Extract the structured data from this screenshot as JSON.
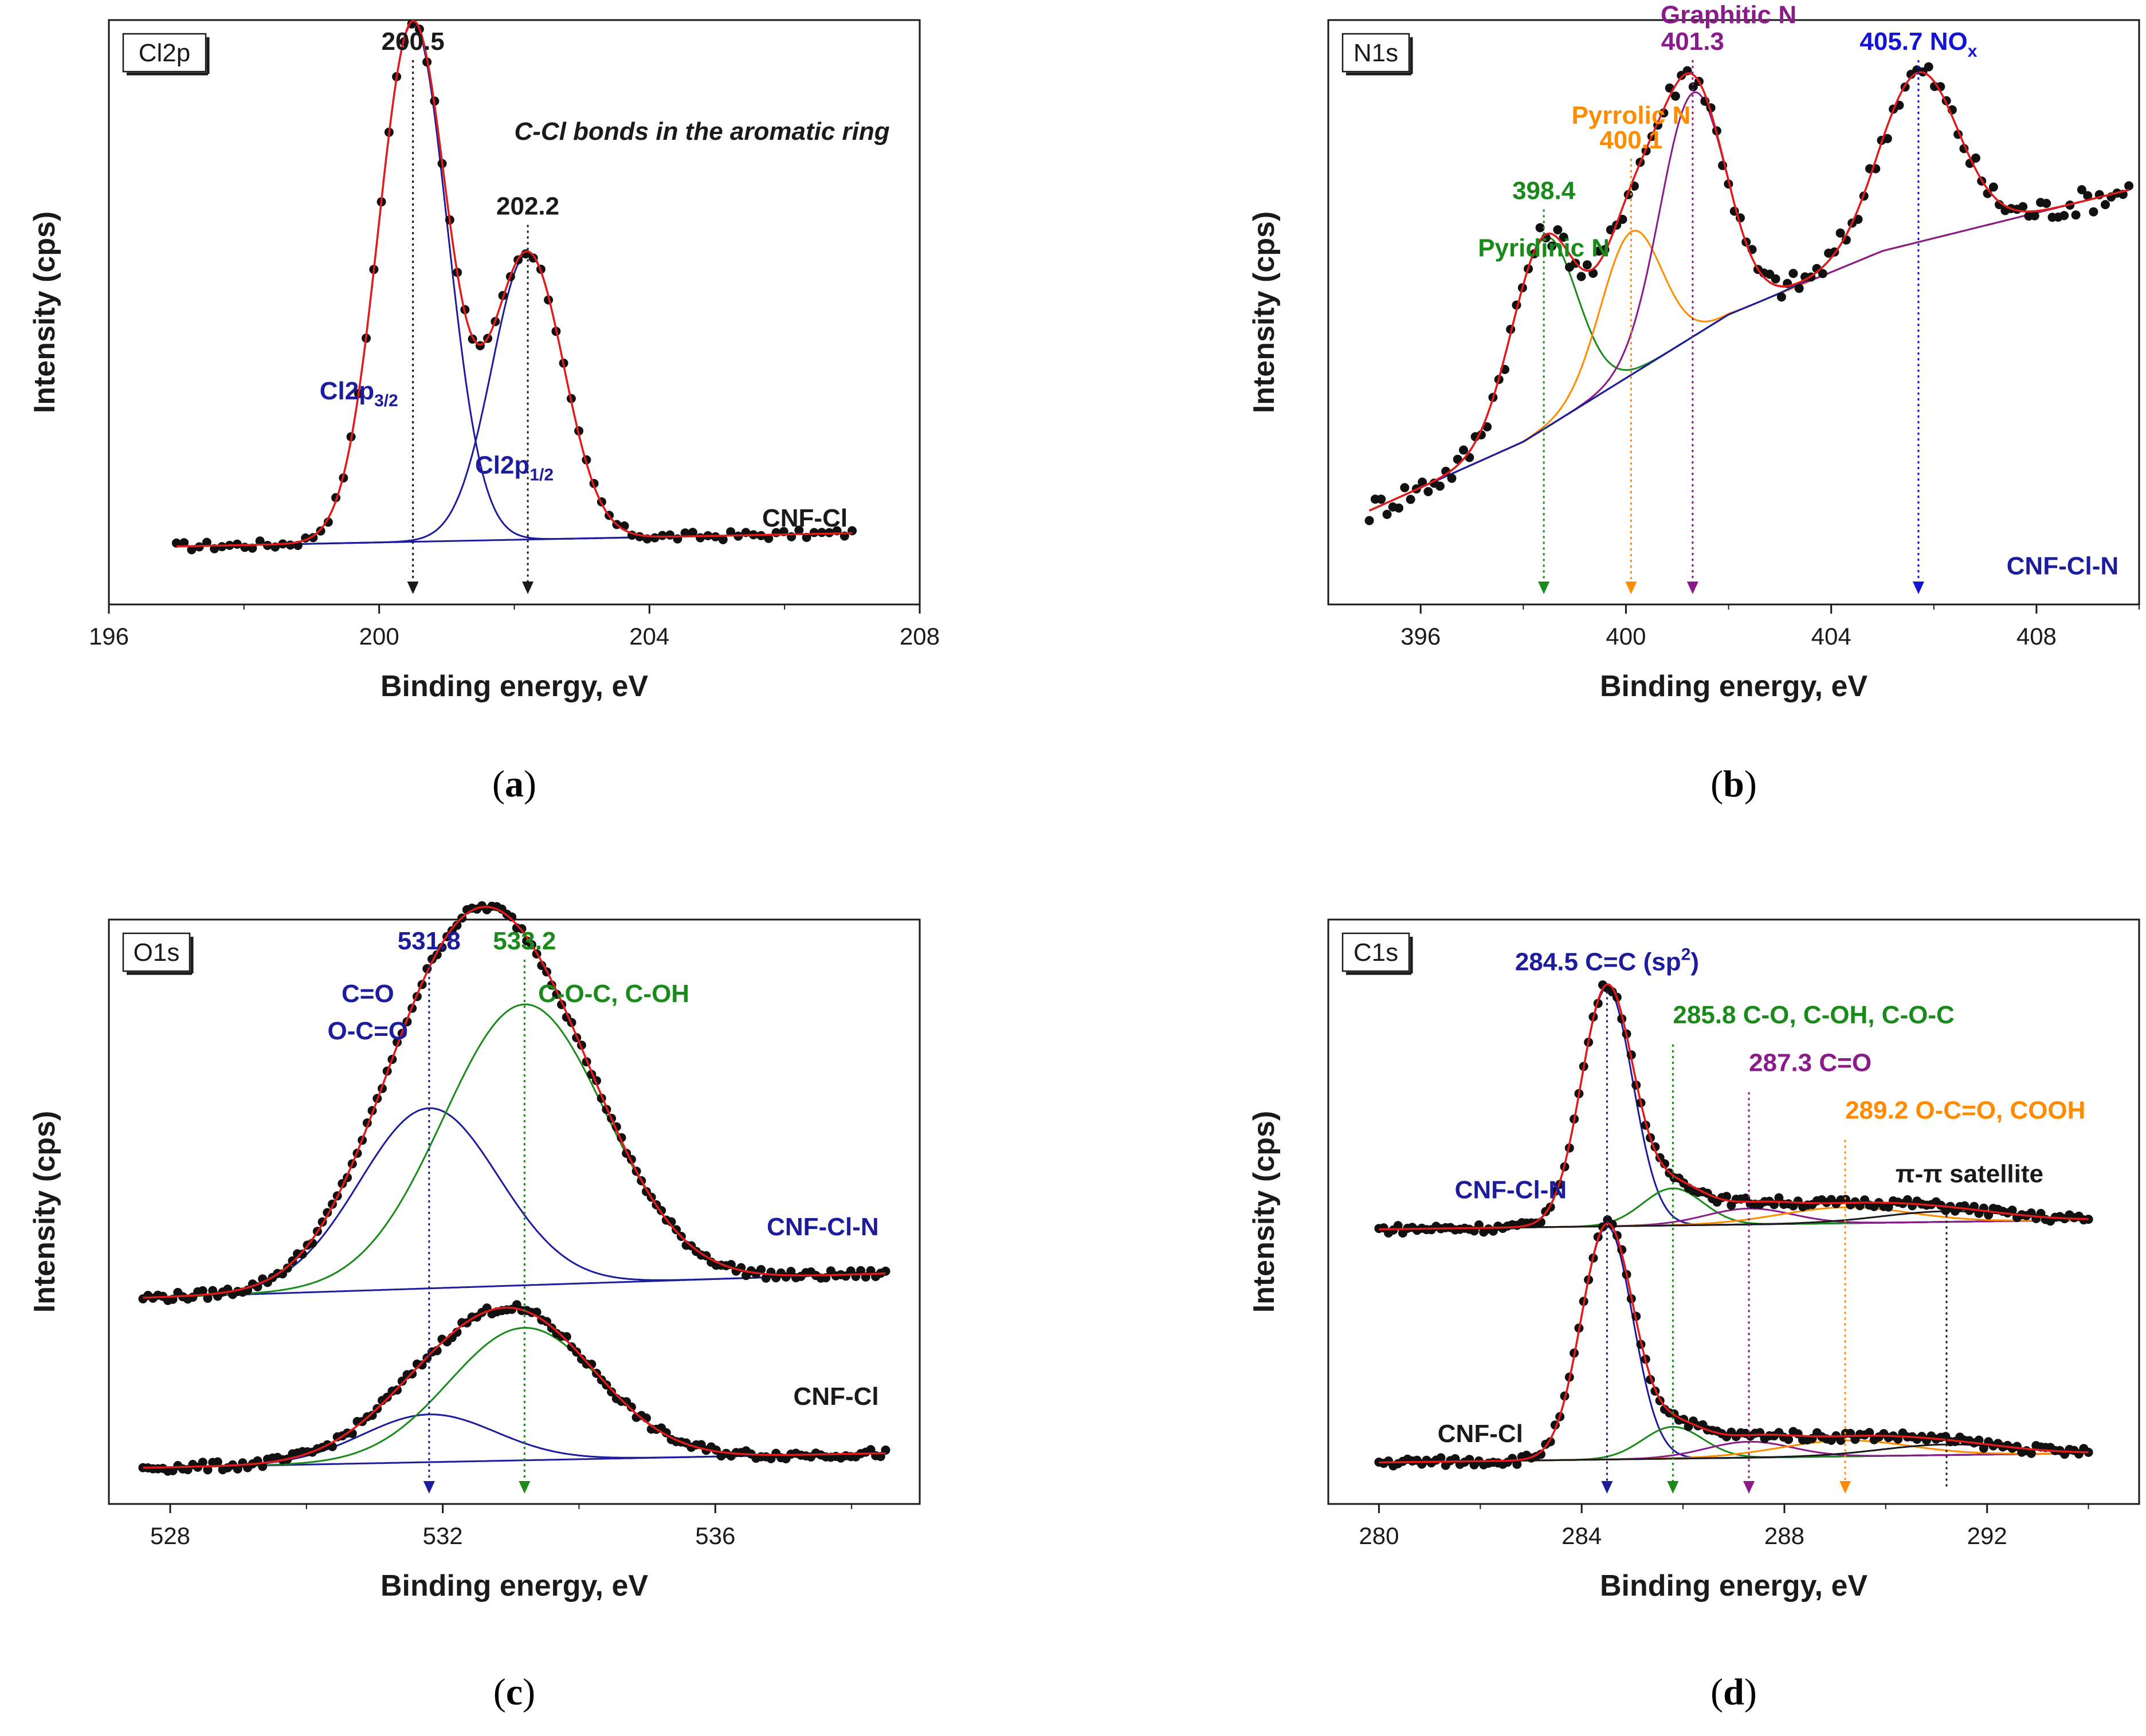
{
  "chart_data": [
    {
      "id": "a",
      "type": "scatter",
      "caption": "a",
      "tag": "Cl2p",
      "xlabel": "Binding energy, eV",
      "ylabel": "Intensity (cps)",
      "xlim": [
        196,
        208
      ],
      "xticks": [
        196,
        200,
        204,
        208
      ],
      "ylim": [
        0,
        1
      ],
      "sample_labels": [
        {
          "text": "CNF-Cl",
          "color": "#1a1a1a",
          "x": 206.3,
          "y": 0.12
        }
      ],
      "background": {
        "from": 0.0,
        "to": 0.03
      },
      "peaks": [
        {
          "center": 200.5,
          "fwhm": 1.2,
          "amp": 0.98,
          "color": "#1c1c9c",
          "marker": {
            "text": "200.5",
            "color": "#1a1a1a"
          }
        },
        {
          "center": 202.2,
          "fwhm": 1.25,
          "amp": 0.54,
          "color": "#1c1c9c",
          "marker": {
            "text": "202.2",
            "color": "#1a1a1a"
          }
        }
      ],
      "annotations": [
        {
          "text": "C-Cl bonds in the aromatic ring",
          "color": "#1a1a1a",
          "x": 202.0,
          "y": 0.85,
          "anchor": "start",
          "italic": true
        },
        {
          "text": "Cl2p",
          "sub": "3/2",
          "color": "#1c1c9c",
          "x": 199.7,
          "y": 0.36,
          "anchor": "middle"
        },
        {
          "text": "Cl2p",
          "sub": "1/2",
          "color": "#1c1c9c",
          "x": 202.0,
          "y": 0.22,
          "anchor": "middle"
        }
      ]
    },
    {
      "id": "b",
      "type": "scatter",
      "caption": "b",
      "tag": "N1s",
      "xlabel": "Binding energy, eV",
      "ylabel": "Intensity (cps)",
      "xlim": [
        394.2,
        410
      ],
      "xticks": [
        396,
        400,
        404,
        408
      ],
      "ylim": [
        0,
        1
      ],
      "sample_labels": [
        {
          "text": "CNF-Cl-N",
          "color": "#1c1c9c",
          "x": 409.6,
          "y": 0.03,
          "anchor": "end"
        }
      ],
      "background": {
        "points": [
          [
            395,
            0.07
          ],
          [
            398,
            0.2
          ],
          [
            402,
            0.44
          ],
          [
            405,
            0.56
          ],
          [
            410,
            0.68
          ]
        ]
      },
      "peaks": [
        {
          "center": 398.4,
          "fwhm": 1.5,
          "amp": 0.36,
          "color": "#1a8a1a",
          "marker": {
            "text": "398.4",
            "color": "#1a8a1a"
          }
        },
        {
          "center": 400.1,
          "fwhm": 1.4,
          "amp": 0.27,
          "color": "#ff8c00",
          "marker": {
            "text": "400.1",
            "color": "#ff8c00"
          }
        },
        {
          "center": 401.3,
          "fwhm": 1.5,
          "amp": 0.46,
          "color": "#8b1a8b",
          "marker": {
            "text": "401.3",
            "color": "#8b1a8b"
          }
        },
        {
          "center": 405.7,
          "fwhm": 1.8,
          "amp": 0.32,
          "color": "#1c1c9c",
          "marker": {
            "text": "405.7 NO",
            "sub": "x",
            "color": "#1414d4"
          }
        }
      ],
      "annotations": [
        {
          "text": "Pyridinic N",
          "color": "#1a8a1a",
          "x": 398.4,
          "y": 0.63,
          "anchor": "middle"
        },
        {
          "text": "Pyrrolic N",
          "color": "#ff8c00",
          "x": 400.1,
          "y": 0.88,
          "anchor": "middle"
        },
        {
          "text": "Graphitic N",
          "color": "#8b1a8b",
          "x": 402.0,
          "y": 1.07,
          "anchor": "middle"
        }
      ]
    },
    {
      "id": "c",
      "type": "scatter",
      "caption": "c",
      "tag": "O1s",
      "xlabel": "Binding energy, eV",
      "ylabel": "Intensity (cps)",
      "xlim": [
        527.1,
        539
      ],
      "xticks": [
        528,
        532,
        536
      ],
      "ylim": [
        0,
        1
      ],
      "sample_labels": [
        {
          "text": "CNF-Cl-N",
          "color": "#1c1c9c",
          "x": 538.4,
          "y": 0.48,
          "anchor": "end"
        },
        {
          "text": "CNF-Cl",
          "color": "#1a1a1a",
          "x": 538.4,
          "y": 0.16,
          "anchor": "end"
        }
      ],
      "spectra": [
        {
          "name": "CNF-Cl-N",
          "offset": 0.36,
          "background": [
            0.0,
            0.05
          ],
          "peaks": [
            {
              "center": 531.8,
              "fwhm": 2.4,
              "amp": 0.34,
              "color": "#1c1c9c"
            },
            {
              "center": 533.2,
              "fwhm": 2.8,
              "amp": 0.53,
              "color": "#1a8a1a"
            }
          ]
        },
        {
          "name": "CNF-Cl",
          "offset": 0.04,
          "background": [
            0.0,
            0.03
          ],
          "peaks": [
            {
              "center": 531.8,
              "fwhm": 2.3,
              "amp": 0.09,
              "color": "#1c1c9c"
            },
            {
              "center": 533.2,
              "fwhm": 2.6,
              "amp": 0.25,
              "color": "#1a8a1a"
            }
          ]
        }
      ],
      "markers": [
        {
          "energy": 531.8,
          "text": "531.8",
          "color": "#1c1c9c"
        },
        {
          "energy": 533.2,
          "text": "533.2",
          "color": "#1a8a1a"
        }
      ],
      "annotations": [
        {
          "text": "C=O",
          "color": "#1c1c9c",
          "x": 530.9,
          "y": 0.92,
          "anchor": "middle"
        },
        {
          "text": "O-C=O",
          "color": "#1c1c9c",
          "x": 530.9,
          "y": 0.85,
          "anchor": "middle"
        },
        {
          "text": "C-O-C, C-OH",
          "color": "#1a8a1a",
          "x": 533.4,
          "y": 0.92,
          "anchor": "start"
        }
      ]
    },
    {
      "id": "d",
      "type": "scatter",
      "caption": "d",
      "tag": "C1s",
      "xlabel": "Binding energy, eV",
      "ylabel": "Intensity (cps)",
      "xlim": [
        279,
        295
      ],
      "xticks": [
        280,
        284,
        288,
        292
      ],
      "ylim": [
        0,
        1
      ],
      "sample_labels": [
        {
          "text": "CNF-Cl-N",
          "color": "#1c1c9c",
          "x": 282.6,
          "y": 0.55,
          "anchor": "middle"
        },
        {
          "text": "CNF-Cl",
          "color": "#1a1a1a",
          "x": 282.0,
          "y": 0.09,
          "anchor": "middle"
        }
      ],
      "spectra": [
        {
          "name": "CNF-Cl-N",
          "offset": 0.49,
          "background": [
            0.0,
            0.02
          ],
          "peaks": [
            {
              "center": 284.5,
              "fwhm": 1.2,
              "amp": 0.45,
              "color": "#1c1c9c"
            },
            {
              "center": 285.8,
              "fwhm": 1.4,
              "amp": 0.07,
              "color": "#1a8a1a"
            },
            {
              "center": 287.3,
              "fwhm": 2.0,
              "amp": 0.03,
              "color": "#8b1a8b"
            },
            {
              "center": 289.2,
              "fwhm": 3.0,
              "amp": 0.03,
              "color": "#ff8c00"
            },
            {
              "center": 291.2,
              "fwhm": 3.0,
              "amp": 0.02,
              "color": "#1a1a1a"
            }
          ]
        },
        {
          "name": "CNF-Cl",
          "offset": 0.05,
          "background": [
            0.0,
            0.02
          ],
          "peaks": [
            {
              "center": 284.5,
              "fwhm": 1.2,
              "amp": 0.44,
              "color": "#1c1c9c"
            },
            {
              "center": 285.8,
              "fwhm": 1.4,
              "amp": 0.06,
              "color": "#1a8a1a"
            },
            {
              "center": 287.3,
              "fwhm": 2.0,
              "amp": 0.03,
              "color": "#8b1a8b"
            },
            {
              "center": 289.2,
              "fwhm": 3.0,
              "amp": 0.03,
              "color": "#ff8c00"
            },
            {
              "center": 291.2,
              "fwhm": 3.0,
              "amp": 0.02,
              "color": "#1a1a1a"
            }
          ]
        }
      ],
      "markers": [
        {
          "energy": 284.5,
          "text": "284.5 C=C (sp",
          "sup": "2",
          "tail": ")",
          "color": "#1c1c9c",
          "labelY": 0.98
        },
        {
          "energy": 285.8,
          "text": "285.8 C-O, C-OH, C-O-C",
          "color": "#1a8a1a",
          "labelY": 0.88
        },
        {
          "energy": 287.3,
          "text": "287.3 C=O",
          "color": "#8b1a8b",
          "labelY": 0.79
        },
        {
          "energy": 289.2,
          "text": "289.2 O-C=O, COOH",
          "color": "#ff8c00",
          "labelY": 0.7
        },
        {
          "energy": 291.2,
          "text": "π-π satellite",
          "color": "#1a1a1a",
          "labelY": 0.58,
          "noArrow": true
        }
      ]
    }
  ]
}
